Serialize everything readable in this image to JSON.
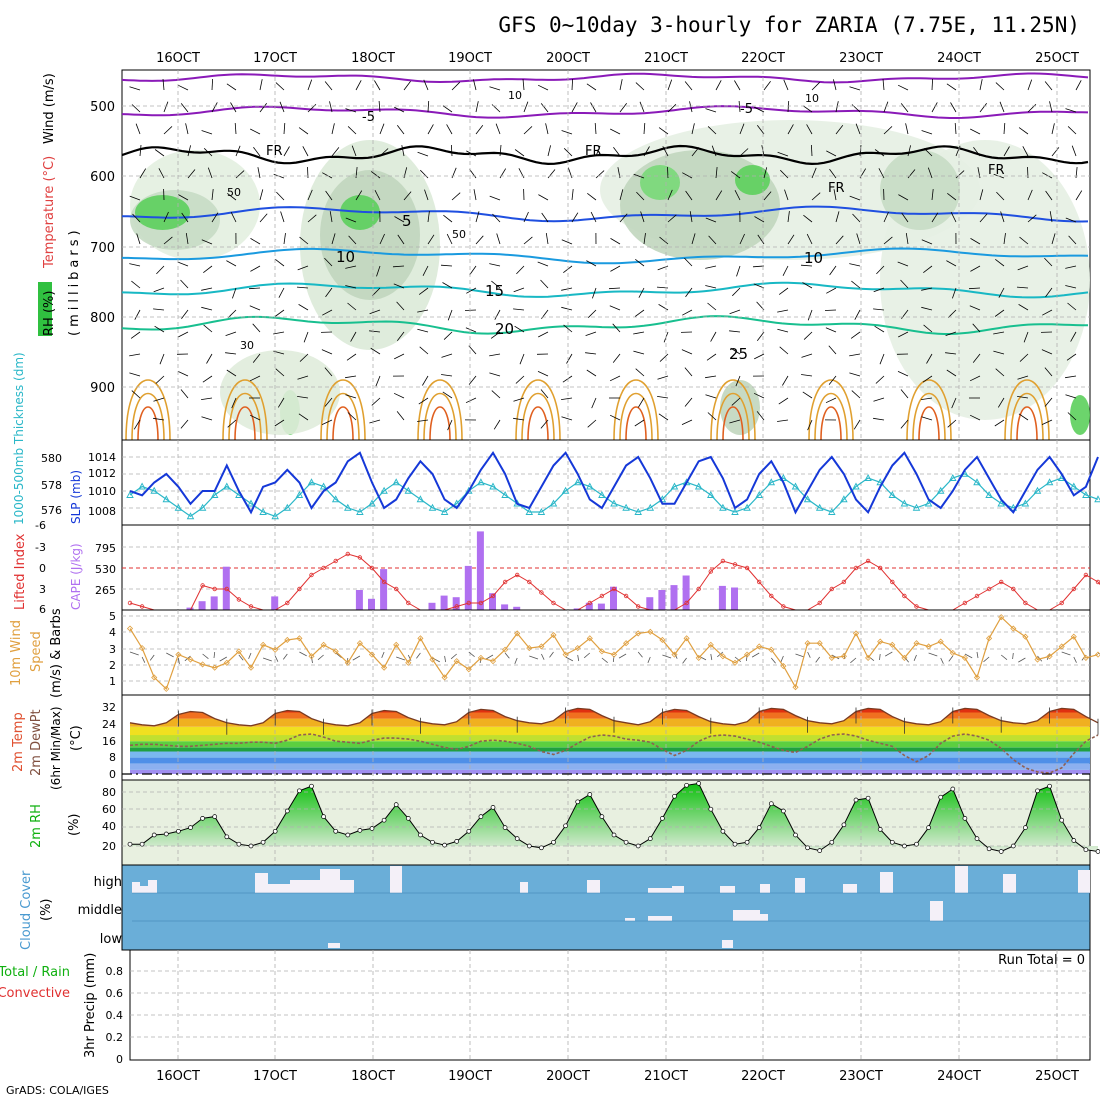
{
  "title": "GFS 0~10day 3-hourly for ZARIA (7.75E, 11.25N)",
  "footer": "GrADS: COLA/IGES",
  "dates": [
    "16OCT",
    "17OCT",
    "18OCT",
    "19OCT",
    "20OCT",
    "21OCT",
    "22OCT",
    "23OCT",
    "24OCT",
    "25OCT"
  ],
  "colors": {
    "purple": "#8a1ab8",
    "freezing": "#000000",
    "blue5": "#1f4fe0",
    "cyan10": "#1a9adf",
    "teal15": "#18b8c4",
    "green20": "#18bf8f",
    "orange25": "#e0a030",
    "slp": "#1538d8",
    "thickness": "#2ab7c8",
    "cape": "#b070f0",
    "lifted": "#e03030",
    "wind10m": "#e0a040",
    "rh2m": "#10c010",
    "cloud": "#70b0e0"
  },
  "panels": {
    "profile": {
      "ylabel_wind": "Wind (m/s)",
      "ylabel_temp": "Temperature (°C)",
      "ylabel_rh": "RH (%)",
      "ylabel_p": "(millibars)",
      "ticks": [
        "500",
        "600",
        "700",
        "800",
        "900"
      ],
      "labels": {
        "m5": "-5",
        "fr": "FR",
        "p5": "5",
        "p10": "10",
        "p15": "15",
        "p20": "20",
        "p25": "25",
        "rh30": "30",
        "rh50": "50",
        "rh10": "10"
      }
    },
    "slp": {
      "ylabel_thick": "1000-500mb Thickness (dm)",
      "ylabel_slp": "SLP (mb)",
      "left_ticks": [
        "580",
        "578",
        "576"
      ],
      "right_ticks": [
        "1014",
        "1012",
        "1010",
        "1008"
      ]
    },
    "cape": {
      "ylabel_li": "Lifted Index",
      "ylabel_cape": "CAPE (J/kg)",
      "left_ticks": [
        "-6",
        "-3",
        "0",
        "3",
        "6"
      ],
      "right_ticks": [
        "795",
        "530",
        "265"
      ]
    },
    "wind": {
      "ylabel_a": "10m Wind",
      "ylabel_b": "Speed",
      "ylabel_c": "(m/s) & Barbs",
      "ticks": [
        "5",
        "4",
        "3",
        "2",
        "1"
      ]
    },
    "temp": {
      "ylabel_a": "2m Temp",
      "ylabel_b": "2m DewPt",
      "ylabel_c": "(6hr Min/Max)",
      "ylabel_d": "(°C)",
      "ticks": [
        "32",
        "24",
        "16",
        "8",
        "0"
      ]
    },
    "rh": {
      "ylabel": "2m RH",
      "unit": "(%)",
      "ticks": [
        "80",
        "60",
        "40",
        "20"
      ]
    },
    "cloud": {
      "ylabel": "Cloud Cover",
      "unit": "(%)",
      "levels": [
        "high",
        "middle",
        "low"
      ]
    },
    "precip": {
      "ylabel_a": "Total / Rain",
      "ylabel_b": "Convective",
      "ylabel_c": "3hr Precip (mm)",
      "run_total": "Run Total = 0",
      "ticks": [
        "0.8",
        "0.6",
        "0.4",
        "0.2",
        "0"
      ]
    }
  },
  "chart_data": [
    {
      "type": "line",
      "title": "SLP (mb)",
      "x": "3-hourly steps 16OCT..25OCT",
      "values": [
        1010,
        1009.5,
        1011,
        1012,
        1010.5,
        1008.5,
        1010,
        1010,
        1013,
        1010,
        1007.5,
        1010.5,
        1011,
        1012.5,
        1011,
        1008,
        1010,
        1011,
        1013.5,
        1014.5,
        1011,
        1008,
        1009,
        1011.5,
        1013.5,
        1012,
        1009,
        1008,
        1010,
        1012.5,
        1014.5,
        1012,
        1008.5,
        1008,
        1010.5,
        1013,
        1014.5,
        1012,
        1009,
        1008,
        1010.5,
        1013,
        1014,
        1011.5,
        1008.5,
        1008.5,
        1011,
        1013.5,
        1014,
        1011.5,
        1008,
        1009,
        1012,
        1013.5,
        1011,
        1007.5,
        1010,
        1012.5,
        1014,
        1012,
        1009,
        1007.5,
        1010.5,
        1013,
        1014.5,
        1012,
        1009,
        1008,
        1010,
        1012.5,
        1014,
        1011.5,
        1009,
        1007.5,
        1010,
        1012.5,
        1014,
        1012,
        1009.5,
        1010.5,
        1014
      ]
    },
    {
      "type": "line",
      "title": "1000-500mb Thickness (dm)",
      "values": [
        578,
        579,
        578.5,
        577.5,
        576.5,
        575.5,
        576.5,
        578,
        579,
        578,
        577,
        576,
        575.5,
        576.5,
        578,
        579.5,
        579,
        577.5,
        576.5,
        576,
        577,
        578.5,
        579.5,
        578.5,
        577.5,
        576.5,
        576,
        577,
        578.5,
        579.5,
        579,
        578,
        577,
        576,
        576,
        577,
        578.5,
        579.5,
        579,
        578,
        577,
        576.5,
        576,
        576.5,
        577.5,
        579,
        579.5,
        579,
        578,
        576.5,
        576,
        576.5,
        578,
        579.5,
        580,
        579,
        577.5,
        576.5,
        576,
        577.5,
        579,
        580,
        579.5,
        578,
        577,
        576.5,
        577,
        578.5,
        580,
        580.5,
        579.5,
        578,
        577,
        576.5,
        577,
        578.5,
        579.5,
        580,
        579,
        578,
        577.5
      ]
    },
    {
      "type": "bar",
      "title": "CAPE (J/kg)",
      "bars": [
        [
          5,
          30
        ],
        [
          6,
          110
        ],
        [
          7,
          170
        ],
        [
          8,
          540
        ],
        [
          12,
          170
        ],
        [
          19,
          250
        ],
        [
          20,
          140
        ],
        [
          21,
          510
        ],
        [
          25,
          90
        ],
        [
          26,
          180
        ],
        [
          27,
          160
        ],
        [
          28,
          550
        ],
        [
          29,
          980
        ],
        [
          30,
          210
        ],
        [
          31,
          70
        ],
        [
          32,
          40
        ],
        [
          37,
          20
        ],
        [
          38,
          90
        ],
        [
          39,
          80
        ],
        [
          40,
          290
        ],
        [
          43,
          160
        ],
        [
          44,
          250
        ],
        [
          45,
          310
        ],
        [
          46,
          430
        ],
        [
          49,
          300
        ],
        [
          50,
          280
        ]
      ]
    },
    {
      "type": "line",
      "title": "Lifted Index",
      "values": [
        5,
        5.5,
        6,
        6,
        6,
        6,
        2.5,
        3,
        3,
        4.5,
        5.5,
        6,
        6,
        5,
        3,
        1,
        0,
        -1,
        -2,
        -1.5,
        0,
        2,
        3,
        5,
        6,
        6,
        6,
        5.5,
        5,
        5,
        4,
        2,
        1,
        2,
        3.5,
        5,
        6,
        6,
        5,
        4,
        3,
        4,
        5.5,
        6,
        6,
        6,
        5,
        3,
        0.5,
        -1,
        -0.5,
        0,
        2,
        4,
        5.5,
        6,
        6,
        5,
        3,
        2,
        0,
        -1,
        0,
        2,
        4,
        5.5,
        6,
        6,
        6,
        5,
        4,
        3,
        2,
        3,
        5,
        6,
        6,
        5,
        3,
        1,
        2,
        4,
        6
      ]
    },
    {
      "type": "line",
      "title": "10m Wind Speed (m/s)",
      "values": [
        4.2,
        3,
        1.2,
        0.5,
        2.6,
        2.3,
        2,
        1.8,
        2.1,
        2.8,
        1.8,
        3.2,
        2.9,
        3.5,
        3.6,
        2.5,
        3.2,
        2.8,
        2.1,
        3.3,
        2.6,
        1.8,
        3.2,
        2.1,
        3.6,
        2.3,
        1.2,
        2.2,
        1.7,
        2.4,
        2.2,
        2.9,
        3.9,
        3,
        3.1,
        3.8,
        2.6,
        3,
        3.6,
        2.8,
        2.6,
        3.3,
        3.9,
        4,
        3.5,
        2.6,
        3.6,
        2.4,
        3.2,
        2.5,
        2.1,
        2.6,
        3.1,
        2.9,
        1.9,
        0.6,
        3.3,
        3.3,
        2.4,
        2.5,
        3.9,
        2.4,
        3.4,
        3.2,
        2.4,
        3.3,
        3.1,
        3.4,
        2.7,
        2.4,
        1.2,
        3.6,
        4.9,
        4.2,
        3.7,
        2.3,
        2.5,
        3.1,
        3.7,
        2.4,
        2.6
      ]
    },
    {
      "type": "area",
      "title": "2m Temp (°C)",
      "values": [
        25,
        24,
        23.5,
        25,
        29,
        30.5,
        30,
        27,
        25,
        24,
        23.5,
        25,
        29.5,
        31,
        30.5,
        27,
        25,
        24,
        23.5,
        25,
        29.5,
        31,
        30.5,
        27.5,
        25.5,
        24.5,
        24,
        25.5,
        30,
        31.5,
        31,
        28,
        26,
        25,
        24.5,
        26,
        30.5,
        32,
        31.5,
        28.5,
        26,
        25,
        24,
        25.5,
        30,
        31.5,
        31,
        28,
        25.5,
        24.5,
        24,
        25.5,
        30.5,
        32,
        31.5,
        28.5,
        26,
        25,
        24.5,
        26,
        30.5,
        32,
        31.5,
        28,
        25.5,
        24.5,
        24,
        25.5,
        30.5,
        32,
        31.5,
        28.5,
        26,
        25,
        24.5,
        26,
        30.5,
        32,
        31.5,
        28,
        25
      ]
    },
    {
      "type": "line",
      "title": "2m DewPt (°C)",
      "values": [
        14,
        14.5,
        14.5,
        14,
        13.5,
        13.5,
        14,
        14.5,
        15,
        15,
        15.5,
        15.5,
        15,
        16.5,
        19,
        19.5,
        18,
        16,
        15.5,
        15,
        16.5,
        17.5,
        17.5,
        17,
        16,
        14.5,
        13,
        12,
        13.5,
        16,
        16.5,
        16,
        15,
        13.5,
        11,
        9.5,
        11.5,
        15,
        18,
        19,
        18.5,
        17,
        16.5,
        15.5,
        12,
        9,
        11.5,
        16,
        18.5,
        19,
        18.5,
        17,
        15.5,
        13.5,
        11.5,
        10.5,
        13.5,
        17,
        19,
        19.5,
        18.5,
        16.5,
        15,
        13.5,
        9,
        6,
        9,
        15,
        18.5,
        19.5,
        18.5,
        16.5,
        12.5,
        7,
        3,
        1,
        0.5,
        3,
        10,
        16,
        19
      ]
    },
    {
      "type": "area",
      "title": "2m RH (%)",
      "values": [
        22,
        22,
        32,
        33,
        36,
        40,
        50,
        52,
        30,
        22,
        20,
        24,
        36,
        58,
        80,
        85,
        52,
        36,
        32,
        37,
        39,
        48,
        65,
        50,
        32,
        24,
        21,
        25,
        36,
        52,
        62,
        40,
        28,
        20,
        18,
        24,
        42,
        68,
        76,
        52,
        32,
        24,
        20,
        28,
        50,
        74,
        86,
        88,
        60,
        36,
        22,
        24,
        40,
        66,
        58,
        32,
        18,
        15,
        24,
        43,
        70,
        72,
        38,
        24,
        20,
        22,
        40,
        73,
        82,
        50,
        28,
        17,
        14,
        20,
        40,
        80,
        85,
        48,
        26,
        16,
        14
      ]
    },
    {
      "type": "bar",
      "title": "Cloud Cover (%) high/middle/low",
      "levels": [
        "high",
        "middle",
        "low"
      ]
    },
    {
      "type": "bar",
      "title": "3hr Precip (mm)",
      "values": [],
      "ylim": [
        0,
        1
      ]
    }
  ]
}
